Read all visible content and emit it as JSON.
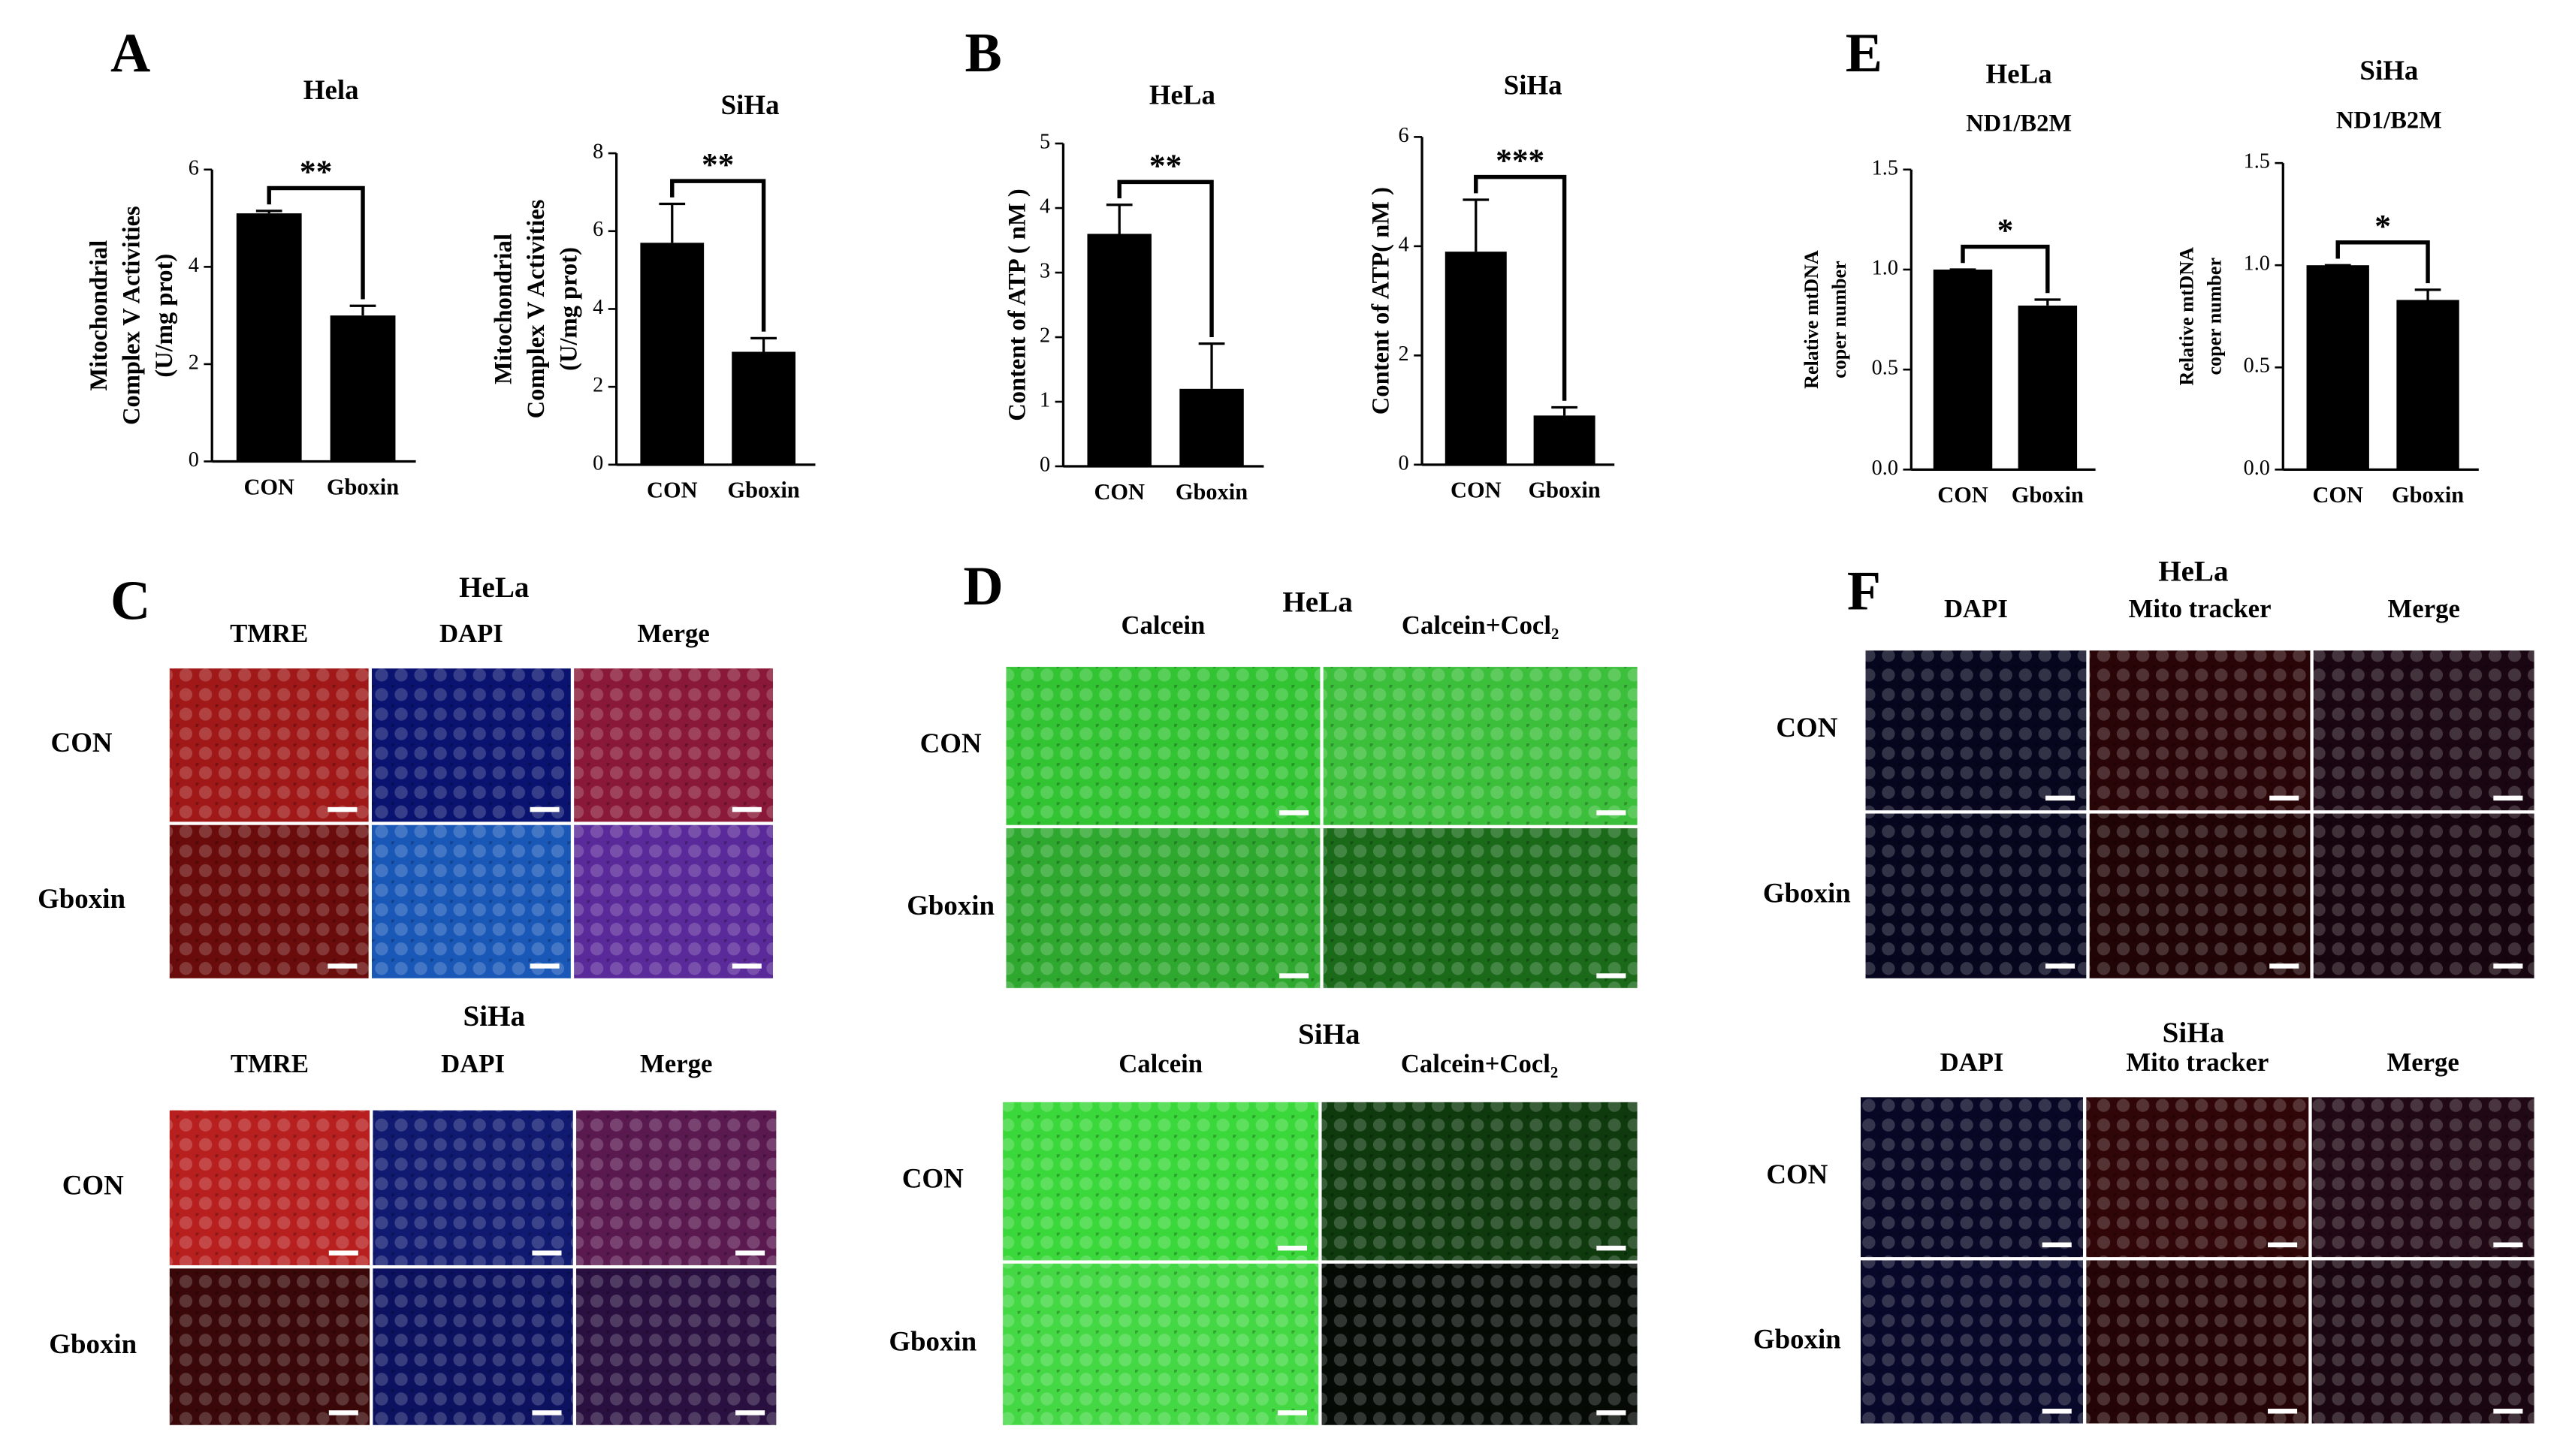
{
  "panel_letters": [
    "A",
    "B",
    "C",
    "D",
    "E",
    "F"
  ],
  "chart_data": [
    {
      "type": "bar",
      "title": "Hela",
      "ylabel": [
        "Mitochondrial",
        "Complex V Activities",
        "(U/mg prot)"
      ],
      "categories": [
        "CON",
        "Gboxin"
      ],
      "values": [
        5.1,
        3.0
      ],
      "errors": [
        0.05,
        0.2
      ],
      "color": "#000000",
      "significance": "**",
      "ylim": [
        0,
        6
      ],
      "yticks": [
        0,
        2,
        4,
        6
      ]
    },
    {
      "type": "bar",
      "title": "SiHa",
      "ylabel": [
        "Mitochondrial",
        "Complex V Activities",
        "(U/mg prot)"
      ],
      "categories": [
        "CON",
        "Gboxin"
      ],
      "values": [
        5.7,
        2.9
      ],
      "errors": [
        1.0,
        0.35
      ],
      "color": "#000000",
      "significance": "**",
      "ylim": [
        0,
        8
      ],
      "yticks": [
        0,
        2,
        4,
        6,
        8
      ]
    },
    {
      "type": "bar",
      "title": "HeLa",
      "ylabel": [
        "Content of ATP ( nM )"
      ],
      "categories": [
        "CON",
        "Gboxin"
      ],
      "values": [
        3.6,
        1.2
      ],
      "errors": [
        0.45,
        0.7
      ],
      "color": "#000000",
      "significance": "**",
      "ylim": [
        0,
        5
      ],
      "yticks": [
        0,
        1,
        2,
        3,
        4,
        5
      ]
    },
    {
      "type": "bar",
      "title": "SiHa",
      "ylabel": [
        "Content of ATP( nM )"
      ],
      "categories": [
        "CON",
        "Gboxin"
      ],
      "values": [
        3.9,
        0.9
      ],
      "errors": [
        0.95,
        0.15
      ],
      "color": "#000000",
      "significance": "***",
      "ylim": [
        0,
        6
      ],
      "yticks": [
        0,
        2,
        4,
        6
      ]
    },
    {
      "type": "bar",
      "title": "HeLa",
      "subtitle": "ND1/B2M",
      "ylabel": [
        "Relative mtDNA",
        "coper number"
      ],
      "categories": [
        "CON",
        "Gboxin"
      ],
      "values": [
        1.0,
        0.82
      ],
      "errors": [
        0,
        0.03
      ],
      "color": "#000000",
      "significance": "*",
      "ylim": [
        0,
        1.5
      ],
      "yticks": [
        {
          "value": 0,
          "label": "0.0"
        },
        0.5,
        {
          "value": 1,
          "label": "1.0"
        },
        1.5
      ]
    },
    {
      "type": "bar",
      "title": "SiHa",
      "subtitle": "ND1/B2M",
      "ylabel": [
        "Relative mtDNA",
        "coper number"
      ],
      "categories": [
        "CON",
        "Gboxin"
      ],
      "values": [
        1.0,
        0.83
      ],
      "errors": [
        0,
        0.05
      ],
      "color": "#000000",
      "significance": "*",
      "ylim": [
        0,
        1.5
      ],
      "yticks": [
        {
          "value": 0,
          "label": "0.0"
        },
        0.5,
        {
          "value": 1,
          "label": "1.0"
        },
        1.5
      ]
    }
  ],
  "image_panels": [
    {
      "title": "HeLa",
      "columns": [
        "TMRE",
        "DAPI",
        "Merge"
      ],
      "rows": [
        "CON",
        "Gboxin"
      ],
      "colors": [
        [
          "#a01818",
          "#0a1470",
          "#8a1838"
        ],
        [
          "#6a0c0c",
          "#1a58b8",
          "#5a2a9a"
        ]
      ]
    },
    {
      "title": "SiHa",
      "columns": [
        "TMRE",
        "DAPI",
        "Merge"
      ],
      "rows": [
        "CON",
        "Gboxin"
      ],
      "colors": [
        [
          "#b82020",
          "#101a70",
          "#5a1a50"
        ],
        [
          "#3a0808",
          "#0c1260",
          "#2a1040"
        ]
      ]
    },
    {
      "title": "HeLa",
      "columns": [
        "Calcein",
        "Calcein+Cocl₂"
      ],
      "rows": [
        "CON",
        "Gboxin"
      ],
      "colors": [
        [
          "#33c433",
          "#3cc03c"
        ],
        [
          "#2ea82e",
          "#1a6a1a"
        ]
      ]
    },
    {
      "title": "SiHa",
      "columns": [
        "Calcein",
        "Calcein+Cocl₂"
      ],
      "rows": [
        "CON",
        "Gboxin"
      ],
      "colors": [
        [
          "#3ad83a",
          "#0e3a0e"
        ],
        [
          "#44d844",
          "#050a05"
        ]
      ]
    },
    {
      "title": "HeLa",
      "columns": [
        "DAPI",
        "Mito tracker",
        "Merge"
      ],
      "rows": [
        "CON",
        "Gboxin"
      ],
      "colors": [
        [
          "#06061e",
          "#2a0508",
          "#1a0612"
        ],
        [
          "#06061e",
          "#200406",
          "#16040e"
        ]
      ]
    },
    {
      "title": "SiHa",
      "columns": [
        "DAPI",
        "Mito tracker",
        "Merge"
      ],
      "rows": [
        "CON",
        "Gboxin"
      ],
      "colors": [
        [
          "#080826",
          "#300608",
          "#200814"
        ],
        [
          "#08082a",
          "#240406",
          "#1a0610"
        ]
      ]
    }
  ]
}
